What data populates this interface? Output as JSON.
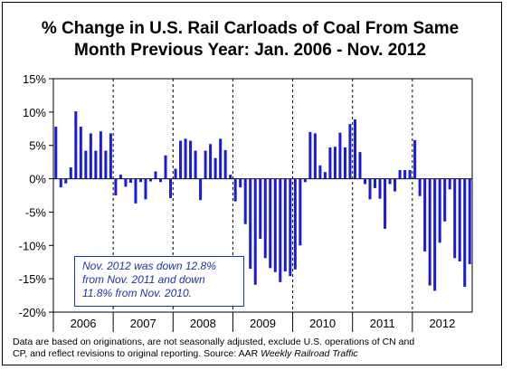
{
  "chart_data": {
    "type": "bar",
    "title_line1": "% Change in U.S. Rail Carloads of Coal From Same",
    "title_line2": "Month Previous Year:  Jan. 2006 - Nov. 2012",
    "ylim": [
      -20,
      15
    ],
    "yticks": [
      "15%",
      "10%",
      "5%",
      "0%",
      "-5%",
      "-10%",
      "-15%",
      "-20%"
    ],
    "ytick_values": [
      15,
      10,
      5,
      0,
      -5,
      -10,
      -15,
      -20
    ],
    "year_labels": [
      "2006",
      "2007",
      "2008",
      "2009",
      "2010",
      "2011",
      "2012"
    ],
    "grid": false,
    "bar_color": "#1a1adb",
    "values": [
      7.8,
      -1.3,
      -0.7,
      1.7,
      10.1,
      7.8,
      4.2,
      6.8,
      4.2,
      7.1,
      4.2,
      6.8,
      -2.5,
      0.6,
      -1.2,
      -0.6,
      -3.7,
      -0.5,
      -3.1,
      -0.4,
      1.1,
      -0.5,
      3.5,
      -2.9,
      1.5,
      5.7,
      6.0,
      5.7,
      4.2,
      -3.2,
      4.2,
      5.2,
      3.1,
      6.0,
      4.3,
      0.6,
      -3.4,
      -1.3,
      -6.8,
      -13.5,
      -15.9,
      -9.0,
      -11.9,
      -13.4,
      -14.0,
      -15.5,
      -13.9,
      -14.6,
      -13.6,
      -10.0,
      -0.5,
      7.0,
      6.8,
      2.0,
      1.0,
      4.7,
      4.8,
      6.9,
      4.7,
      8.2,
      8.9,
      4.0,
      -0.8,
      -3.1,
      -1.4,
      -3.0,
      -7.5,
      -0.8,
      -1.9,
      1.3,
      1.3,
      1.3,
      5.8,
      -2.6,
      -10.9,
      -16.0,
      -16.8,
      -9.6,
      -6.4,
      -1.6,
      -11.9,
      -12.4,
      -16.2,
      -12.8
    ]
  },
  "annotation": {
    "line1": "Nov. 2012 was down 12.8%",
    "line2": "from Nov. 2011 and down",
    "line3": "11.8% from Nov. 2010."
  },
  "footnote": {
    "line1": "Data are based on originations,  are not seasonally adjusted, exclude U.S. operations of CN and",
    "line2_prefix": "CP, and reflect revisions to original reporting.  Source: AAR ",
    "line2_italic": "Weekly Railroad Traffic"
  }
}
